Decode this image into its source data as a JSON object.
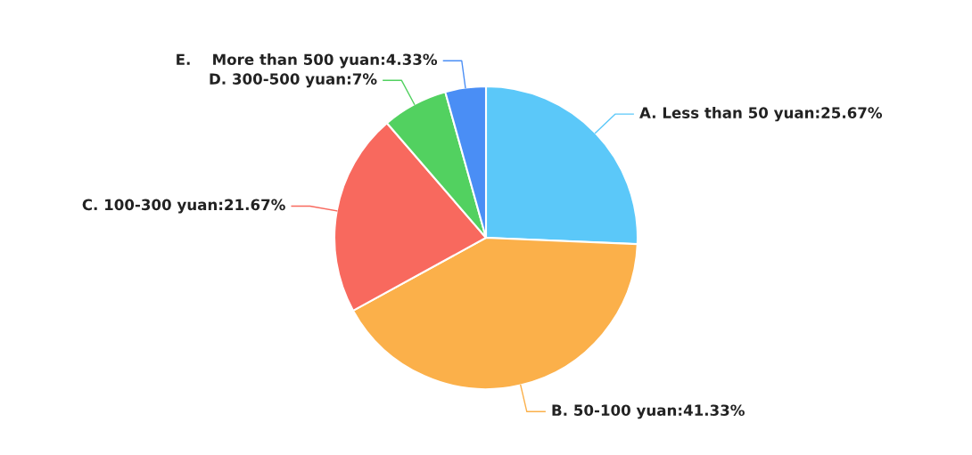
{
  "chart_data": {
    "type": "pie",
    "categories": [
      "A. Less than 50 yuan:25.67%",
      "B. 50-100 yuan:41.33%",
      "C. 100-300 yuan:21.67%",
      "D. 300-500 yuan:7%",
      "E.    More than 500 yuan:4.33%"
    ],
    "values": [
      25.67,
      41.33,
      21.67,
      7,
      4.33
    ],
    "colors": [
      "#5bc8f9",
      "#fbb04a",
      "#f8695e",
      "#52d160",
      "#4a8ef5"
    ]
  }
}
